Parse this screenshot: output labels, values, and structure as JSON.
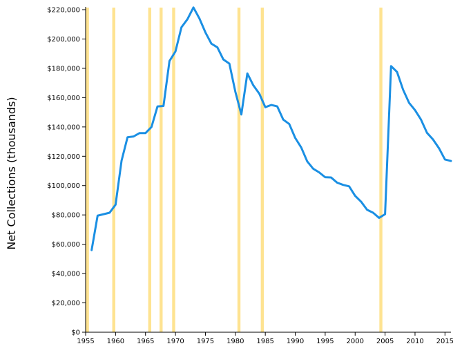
{
  "chart_data": {
    "type": "line",
    "title": "",
    "xlabel": "",
    "ylabel": "Net Collections (thousands)",
    "xlim": [
      1955,
      2016
    ],
    "ylim": [
      0,
      220000
    ],
    "grid": false,
    "line_color": "#1a8fe3",
    "band_color": "#fee391",
    "x_ticks": [
      1955,
      1960,
      1965,
      1970,
      1975,
      1980,
      1985,
      1990,
      1995,
      2000,
      2005,
      2010,
      2015
    ],
    "x_tick_labels": [
      "1955",
      "1960",
      "1965",
      "1970",
      "1975",
      "1980",
      "1985",
      "1990",
      "1995",
      "2000",
      "2005",
      "2010",
      "2015"
    ],
    "y_ticks": [
      0,
      20000,
      40000,
      60000,
      80000,
      100000,
      120000,
      140000,
      160000,
      180000,
      200000,
      220000
    ],
    "y_tick_labels": [
      "$0",
      "$20,000",
      "$40,000",
      "$60,000",
      "$80,000",
      "$100,000",
      "$120,000",
      "$140,000",
      "$160,000",
      "$180,000",
      "$200,000",
      "$220,000"
    ],
    "highlight_years": [
      1955.3,
      1959.7,
      1965.7,
      1967.6,
      1969.7,
      1980.6,
      1984.5,
      2004.3
    ],
    "series": [
      {
        "x": [
          1956,
          1957,
          1958,
          1959,
          1960,
          1961,
          1962,
          1963,
          1964,
          1965,
          1966,
          1967,
          1968,
          1969,
          1970,
          1971,
          1972,
          1973,
          1974,
          1975,
          1976,
          1977,
          1978,
          1979,
          1980,
          1981,
          1982,
          1983,
          1984,
          1985,
          1986,
          1987,
          1988,
          1989,
          1990,
          1991,
          1992,
          1993,
          1994,
          1995,
          1996,
          1997,
          1998,
          1999,
          2000,
          2001,
          2002,
          2003,
          2004,
          2005,
          2006,
          2007,
          2008,
          2009,
          2010,
          2011,
          2012,
          2013,
          2014,
          2015,
          2016
        ],
        "y": [
          56000,
          79500,
          80500,
          81500,
          87000,
          117000,
          133000,
          133500,
          135800,
          135800,
          140000,
          154000,
          154300,
          185000,
          191500,
          208000,
          213500,
          221500,
          214000,
          204500,
          196800,
          194300,
          186000,
          183200,
          164000,
          148500,
          176500,
          168400,
          162700,
          153500,
          155000,
          154000,
          145000,
          142000,
          132500,
          126000,
          116500,
          111500,
          109000,
          105700,
          105500,
          102000,
          100500,
          99500,
          93000,
          89000,
          83500,
          81500,
          78000,
          80500,
          181500,
          177500,
          165500,
          156500,
          151500,
          145000,
          136000,
          131500,
          125500,
          117800,
          116800
        ]
      }
    ]
  }
}
